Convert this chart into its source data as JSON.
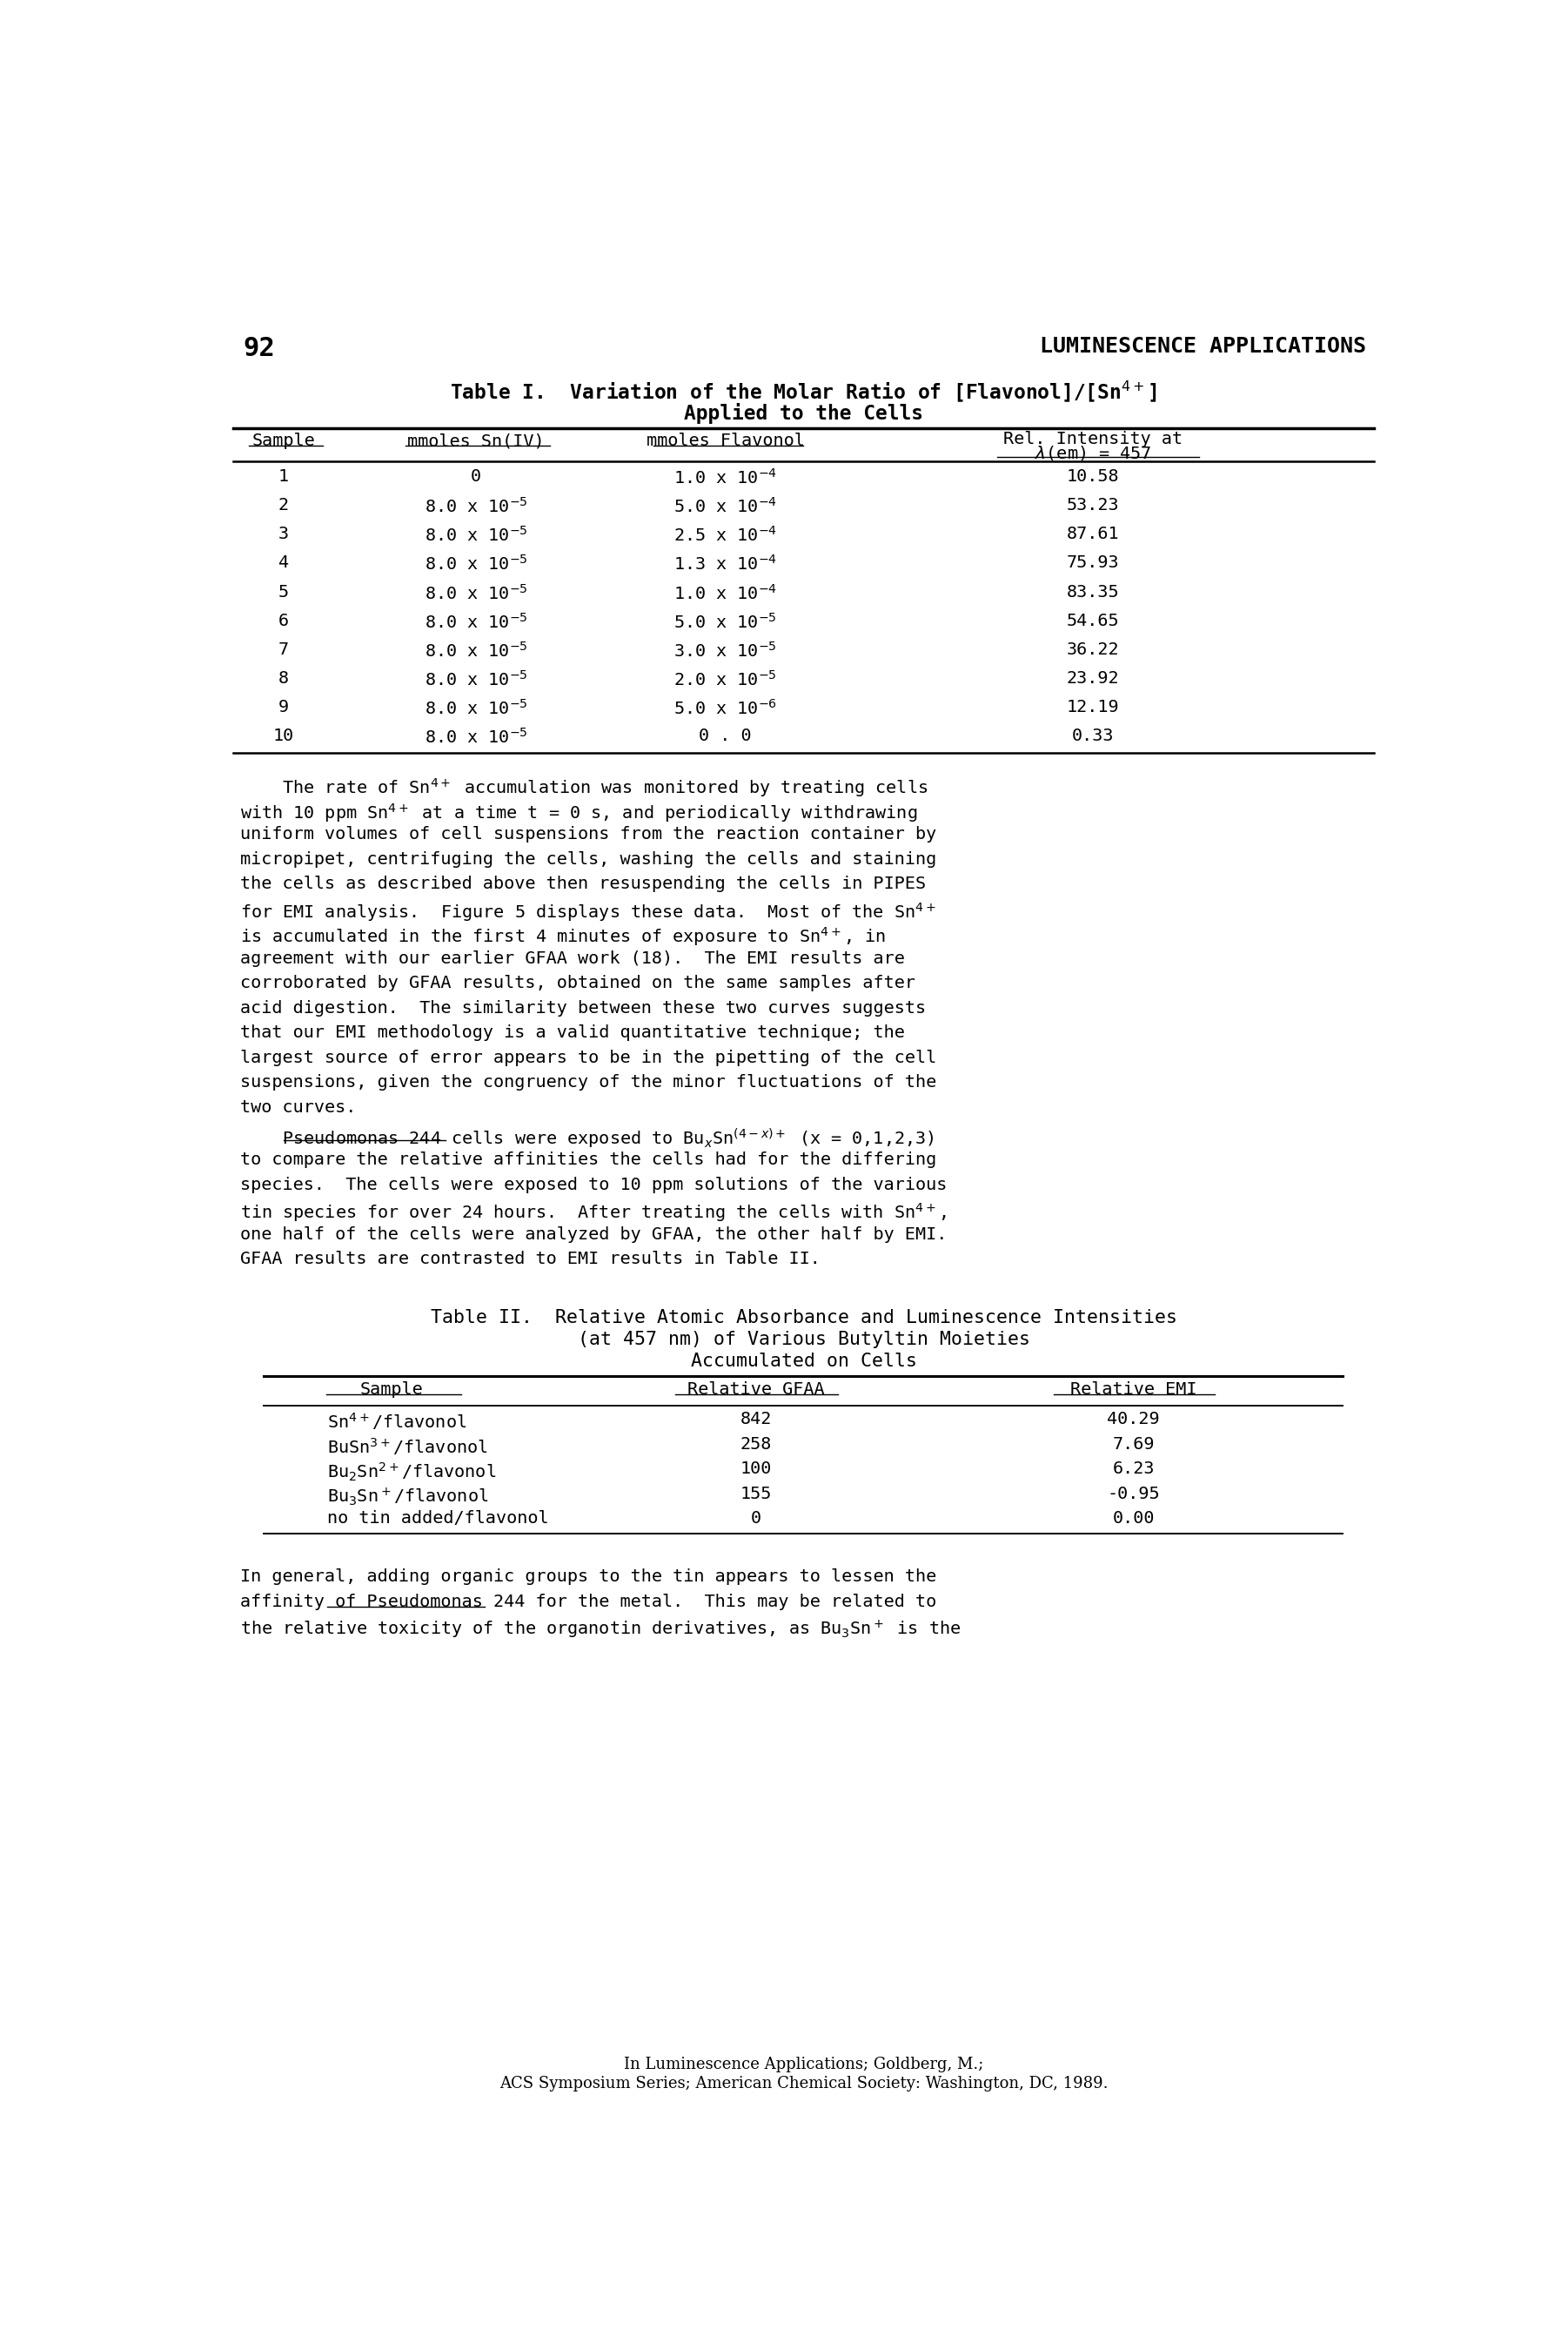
{
  "page_number": "92",
  "header_right": "LUMINESCENCE APPLICATIONS",
  "table1_title_line1": "Table I.  Variation of the Molar Ratio of [Flavonol]/[Sn$^{4+}$]",
  "table1_title_line2": "Applied to the Cells",
  "table1_col1_header": "Sample",
  "table1_col2_header": "mmoles Sn(IV)",
  "table1_col3_header": "mmoles Flavonol",
  "table1_col4_header_line1": "Rel. Intensity at",
  "table1_col4_header_line2": "$\\lambda$(em) = 457",
  "table1_rows": [
    [
      "1",
      "0",
      "1.0 x 10$^{-4}$",
      "10.58"
    ],
    [
      "2",
      "8.0 x 10$^{-5}$",
      "5.0 x 10$^{-4}$",
      "53.23"
    ],
    [
      "3",
      "8.0 x 10$^{-5}$",
      "2.5 x 10$^{-4}$",
      "87.61"
    ],
    [
      "4",
      "8.0 x 10$^{-5}$",
      "1.3 x 10$^{-4}$",
      "75.93"
    ],
    [
      "5",
      "8.0 x 10$^{-5}$",
      "1.0 x 10$^{-4}$",
      "83.35"
    ],
    [
      "6",
      "8.0 x 10$^{-5}$",
      "5.0 x 10$^{-5}$",
      "54.65"
    ],
    [
      "7",
      "8.0 x 10$^{-5}$",
      "3.0 x 10$^{-5}$",
      "36.22"
    ],
    [
      "8",
      "8.0 x 10$^{-5}$",
      "2.0 x 10$^{-5}$",
      "23.92"
    ],
    [
      "9",
      "8.0 x 10$^{-5}$",
      "5.0 x 10$^{-6}$",
      "12.19"
    ],
    [
      "10",
      "8.0 x 10$^{-5}$",
      "0 . 0",
      "0.33"
    ]
  ],
  "para1_lines": [
    "    The rate of Sn$^{4+}$ accumulation was monitored by treating cells",
    "with 10 ppm Sn$^{4+}$ at a time t = 0 s, and periodically withdrawing",
    "uniform volumes of cell suspensions from the reaction container by",
    "micropipet, centrifuging the cells, washing the cells and staining",
    "the cells as described above then resuspending the cells in PIPES",
    "for EMI analysis.  Figure 5 displays these data.  Most of the Sn$^{4+}$",
    "is accumulated in the first 4 minutes of exposure to Sn$^{4+}$, in",
    "agreement with our earlier GFAA work (18).  The EMI results are",
    "corroborated by GFAA results, obtained on the same samples after",
    "acid digestion.  The similarity between these two curves suggests",
    "that our EMI methodology is a valid quantitative technique; the",
    "largest source of error appears to be in the pipetting of the cell",
    "suspensions, given the congruency of the minor fluctuations of the",
    "two curves."
  ],
  "para2_lines": [
    "    Pseudomonas 244 cells were exposed to Bu$_x$Sn$^{(4-x)+}$ (x = 0,1,2,3)",
    "to compare the relative affinities the cells had for the differing",
    "species.  The cells were exposed to 10 ppm solutions of the various",
    "tin species for over 24 hours.  After treating the cells with Sn$^{4+}$,",
    "one half of the cells were analyzed by GFAA, the other half by EMI.",
    "GFAA results are contrasted to EMI results in Table II."
  ],
  "table2_title_line1": "Table II.  Relative Atomic Absorbance and Luminescence Intensities",
  "table2_title_line2": "(at 457 nm) of Various Butyltin Moieties",
  "table2_title_line3": "Accumulated on Cells",
  "table2_col1_header": "Sample",
  "table2_col2_header": "Relative GFAA",
  "table2_col3_header": "Relative EMI",
  "table2_rows": [
    [
      "Sn$^{4+}$/flavonol",
      "842",
      "40.29"
    ],
    [
      "BuSn$^{3+}$/flavonol",
      "258",
      "7.69"
    ],
    [
      "Bu$_2$Sn$^{2+}$/flavonol",
      "100",
      "6.23"
    ],
    [
      "Bu$_3$Sn$^+$/flavonol",
      "155",
      "-0.95"
    ],
    [
      "no tin added/flavonol",
      "0",
      "0.00"
    ]
  ],
  "para3_lines": [
    "In general, adding organic groups to the tin appears to lessen the",
    "affinity of Pseudomonas 244 for the metal.  This may be related to",
    "the relative toxicity of the organotin derivatives, as Bu$_3$Sn$^+$ is the"
  ],
  "footer_line1": "In Luminescence Applications; Goldberg, M.;",
  "footer_line2": "ACS Symposium Series; American Chemical Society: Washington, DC, 1989."
}
